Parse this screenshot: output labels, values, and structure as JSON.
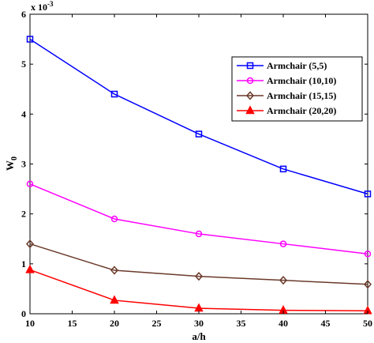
{
  "chart_data": {
    "type": "line",
    "title": "",
    "xlabel": "a/h",
    "ylabel": "W",
    "ylabel_subscript": "0",
    "y_multiplier": "x 10",
    "y_multiplier_exponent": "-3",
    "x": [
      10,
      20,
      30,
      40,
      50
    ],
    "xlim": [
      10,
      50
    ],
    "ylim": [
      0,
      6
    ],
    "xticks": [
      10,
      15,
      20,
      25,
      30,
      35,
      40,
      45,
      50
    ],
    "yticks": [
      0,
      1,
      2,
      3,
      4,
      5,
      6
    ],
    "grid": false,
    "legend_position": "upper right",
    "series": [
      {
        "name": "Armchair (5,5)",
        "color": "#0000ff",
        "marker": "square",
        "values": [
          5.5,
          4.4,
          3.6,
          2.9,
          2.4
        ]
      },
      {
        "name": "Armchair (10,10)",
        "color": "#ff00ff",
        "marker": "circle",
        "values": [
          2.6,
          1.9,
          1.6,
          1.4,
          1.2
        ]
      },
      {
        "name": "Armchair (15,15)",
        "color": "#6b3a2a",
        "marker": "diamond",
        "values": [
          1.4,
          0.87,
          0.75,
          0.67,
          0.59
        ]
      },
      {
        "name": "Armchair (20,20)",
        "color": "#ff0000",
        "marker": "triangle",
        "values": [
          0.88,
          0.27,
          0.11,
          0.07,
          0.06
        ]
      }
    ]
  }
}
